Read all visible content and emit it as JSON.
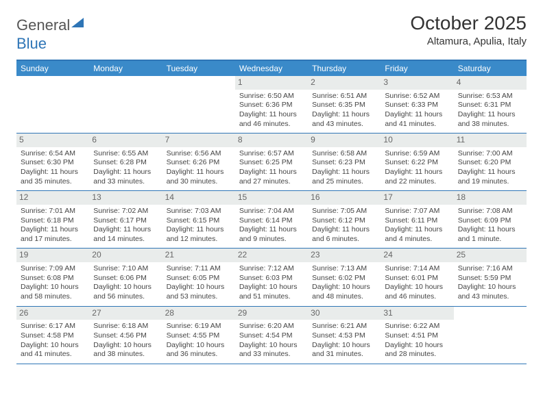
{
  "brand": {
    "part1": "General",
    "part2": "Blue"
  },
  "title": "October 2025",
  "location": "Altamura, Apulia, Italy",
  "colors": {
    "header_bg": "#3a8ac9",
    "rule": "#2e75b6",
    "daynum_bg": "#e9eceb",
    "text": "#333333"
  },
  "day_headers": [
    "Sunday",
    "Monday",
    "Tuesday",
    "Wednesday",
    "Thursday",
    "Friday",
    "Saturday"
  ],
  "leading_blanks": 3,
  "days": [
    {
      "n": 1,
      "sunrise": "6:50 AM",
      "sunset": "6:36 PM",
      "daylight": "11 hours and 46 minutes."
    },
    {
      "n": 2,
      "sunrise": "6:51 AM",
      "sunset": "6:35 PM",
      "daylight": "11 hours and 43 minutes."
    },
    {
      "n": 3,
      "sunrise": "6:52 AM",
      "sunset": "6:33 PM",
      "daylight": "11 hours and 41 minutes."
    },
    {
      "n": 4,
      "sunrise": "6:53 AM",
      "sunset": "6:31 PM",
      "daylight": "11 hours and 38 minutes."
    },
    {
      "n": 5,
      "sunrise": "6:54 AM",
      "sunset": "6:30 PM",
      "daylight": "11 hours and 35 minutes."
    },
    {
      "n": 6,
      "sunrise": "6:55 AM",
      "sunset": "6:28 PM",
      "daylight": "11 hours and 33 minutes."
    },
    {
      "n": 7,
      "sunrise": "6:56 AM",
      "sunset": "6:26 PM",
      "daylight": "11 hours and 30 minutes."
    },
    {
      "n": 8,
      "sunrise": "6:57 AM",
      "sunset": "6:25 PM",
      "daylight": "11 hours and 27 minutes."
    },
    {
      "n": 9,
      "sunrise": "6:58 AM",
      "sunset": "6:23 PM",
      "daylight": "11 hours and 25 minutes."
    },
    {
      "n": 10,
      "sunrise": "6:59 AM",
      "sunset": "6:22 PM",
      "daylight": "11 hours and 22 minutes."
    },
    {
      "n": 11,
      "sunrise": "7:00 AM",
      "sunset": "6:20 PM",
      "daylight": "11 hours and 19 minutes."
    },
    {
      "n": 12,
      "sunrise": "7:01 AM",
      "sunset": "6:18 PM",
      "daylight": "11 hours and 17 minutes."
    },
    {
      "n": 13,
      "sunrise": "7:02 AM",
      "sunset": "6:17 PM",
      "daylight": "11 hours and 14 minutes."
    },
    {
      "n": 14,
      "sunrise": "7:03 AM",
      "sunset": "6:15 PM",
      "daylight": "11 hours and 12 minutes."
    },
    {
      "n": 15,
      "sunrise": "7:04 AM",
      "sunset": "6:14 PM",
      "daylight": "11 hours and 9 minutes."
    },
    {
      "n": 16,
      "sunrise": "7:05 AM",
      "sunset": "6:12 PM",
      "daylight": "11 hours and 6 minutes."
    },
    {
      "n": 17,
      "sunrise": "7:07 AM",
      "sunset": "6:11 PM",
      "daylight": "11 hours and 4 minutes."
    },
    {
      "n": 18,
      "sunrise": "7:08 AM",
      "sunset": "6:09 PM",
      "daylight": "11 hours and 1 minute."
    },
    {
      "n": 19,
      "sunrise": "7:09 AM",
      "sunset": "6:08 PM",
      "daylight": "10 hours and 58 minutes."
    },
    {
      "n": 20,
      "sunrise": "7:10 AM",
      "sunset": "6:06 PM",
      "daylight": "10 hours and 56 minutes."
    },
    {
      "n": 21,
      "sunrise": "7:11 AM",
      "sunset": "6:05 PM",
      "daylight": "10 hours and 53 minutes."
    },
    {
      "n": 22,
      "sunrise": "7:12 AM",
      "sunset": "6:03 PM",
      "daylight": "10 hours and 51 minutes."
    },
    {
      "n": 23,
      "sunrise": "7:13 AM",
      "sunset": "6:02 PM",
      "daylight": "10 hours and 48 minutes."
    },
    {
      "n": 24,
      "sunrise": "7:14 AM",
      "sunset": "6:01 PM",
      "daylight": "10 hours and 46 minutes."
    },
    {
      "n": 25,
      "sunrise": "7:16 AM",
      "sunset": "5:59 PM",
      "daylight": "10 hours and 43 minutes."
    },
    {
      "n": 26,
      "sunrise": "6:17 AM",
      "sunset": "4:58 PM",
      "daylight": "10 hours and 41 minutes."
    },
    {
      "n": 27,
      "sunrise": "6:18 AM",
      "sunset": "4:56 PM",
      "daylight": "10 hours and 38 minutes."
    },
    {
      "n": 28,
      "sunrise": "6:19 AM",
      "sunset": "4:55 PM",
      "daylight": "10 hours and 36 minutes."
    },
    {
      "n": 29,
      "sunrise": "6:20 AM",
      "sunset": "4:54 PM",
      "daylight": "10 hours and 33 minutes."
    },
    {
      "n": 30,
      "sunrise": "6:21 AM",
      "sunset": "4:53 PM",
      "daylight": "10 hours and 31 minutes."
    },
    {
      "n": 31,
      "sunrise": "6:22 AM",
      "sunset": "4:51 PM",
      "daylight": "10 hours and 28 minutes."
    }
  ],
  "labels": {
    "sunrise": "Sunrise:",
    "sunset": "Sunset:",
    "daylight": "Daylight:"
  }
}
